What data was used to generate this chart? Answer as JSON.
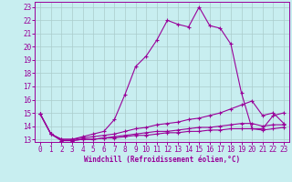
{
  "xlabel": "Windchill (Refroidissement éolien,°C)",
  "xlim": [
    -0.5,
    23.5
  ],
  "ylim": [
    12.8,
    23.4
  ],
  "yticks": [
    13,
    14,
    15,
    16,
    17,
    18,
    19,
    20,
    21,
    22,
    23
  ],
  "xticks": [
    0,
    1,
    2,
    3,
    4,
    5,
    6,
    7,
    8,
    9,
    10,
    11,
    12,
    13,
    14,
    15,
    16,
    17,
    18,
    19,
    20,
    21,
    22,
    23
  ],
  "bg_color": "#c8eef0",
  "line_color": "#990099",
  "grid_color": "#aacccc",
  "line1_x": [
    0,
    1,
    2,
    3,
    4,
    5,
    6,
    7,
    8,
    9,
    10,
    11,
    12,
    13,
    14,
    15,
    16,
    17,
    18,
    19,
    20,
    21,
    22,
    23
  ],
  "line1_y": [
    14.9,
    13.4,
    13.0,
    13.0,
    13.2,
    13.4,
    13.6,
    14.5,
    16.4,
    18.5,
    19.3,
    20.5,
    22.0,
    21.7,
    21.5,
    23.0,
    21.6,
    21.4,
    20.2,
    16.5,
    13.8,
    13.8,
    14.8,
    15.0
  ],
  "line2_x": [
    0,
    1,
    2,
    3,
    4,
    5,
    6,
    7,
    8,
    9,
    10,
    11,
    12,
    13,
    14,
    15,
    16,
    17,
    18,
    19,
    20,
    21,
    22,
    23
  ],
  "line2_y": [
    14.9,
    13.4,
    13.0,
    13.0,
    13.1,
    13.2,
    13.3,
    13.4,
    13.6,
    13.8,
    13.9,
    14.1,
    14.2,
    14.3,
    14.5,
    14.6,
    14.8,
    15.0,
    15.3,
    15.6,
    15.9,
    14.8,
    15.0,
    14.2
  ],
  "line3_x": [
    0,
    1,
    2,
    3,
    4,
    5,
    6,
    7,
    8,
    9,
    10,
    11,
    12,
    13,
    14,
    15,
    16,
    17,
    18,
    19,
    20,
    21,
    22,
    23
  ],
  "line3_y": [
    14.9,
    13.4,
    12.9,
    12.9,
    13.0,
    13.0,
    13.1,
    13.2,
    13.3,
    13.4,
    13.5,
    13.6,
    13.6,
    13.7,
    13.8,
    13.9,
    13.9,
    14.0,
    14.1,
    14.2,
    14.2,
    14.0,
    14.1,
    14.1
  ],
  "line4_x": [
    0,
    1,
    2,
    3,
    4,
    5,
    6,
    7,
    8,
    9,
    10,
    11,
    12,
    13,
    14,
    15,
    16,
    17,
    18,
    19,
    20,
    21,
    22,
    23
  ],
  "line4_y": [
    14.9,
    13.4,
    12.9,
    12.9,
    13.0,
    13.0,
    13.1,
    13.1,
    13.2,
    13.3,
    13.3,
    13.4,
    13.5,
    13.5,
    13.6,
    13.6,
    13.7,
    13.7,
    13.8,
    13.8,
    13.8,
    13.7,
    13.8,
    13.9
  ]
}
